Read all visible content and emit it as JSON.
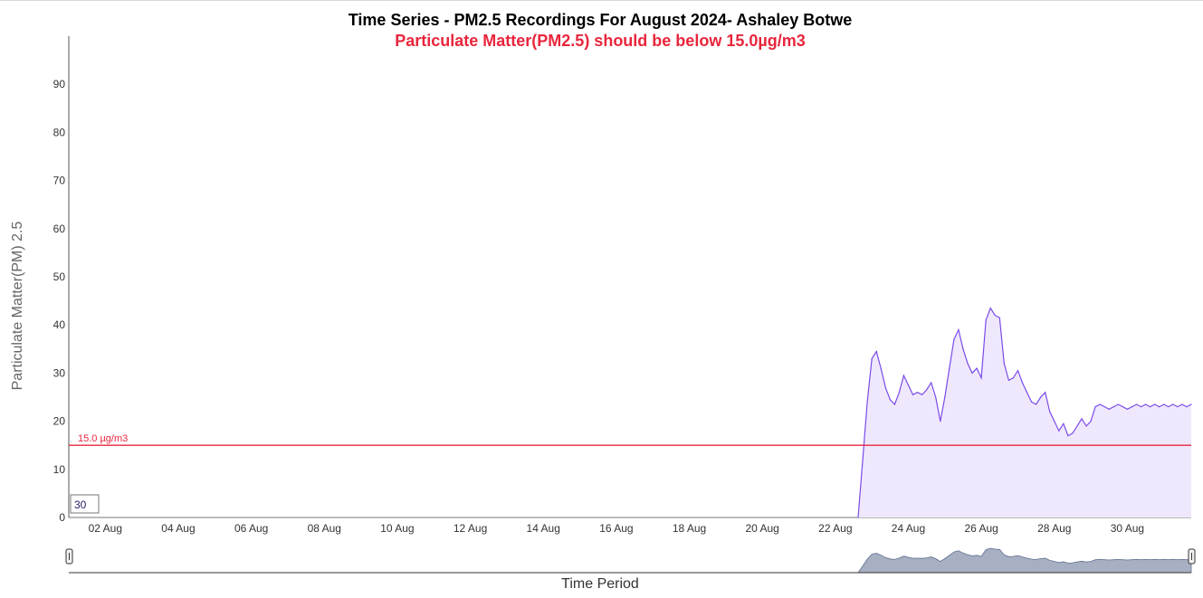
{
  "title": "Time Series - PM2.5 Recordings For August 2024- Ashaley Botwe",
  "subtitle": "Particulate Matter(PM2.5) should be below 15.0µg/m3",
  "chart_data": {
    "type": "area",
    "ylabel": "Particulate Matter(PM) 2.5",
    "xlabel": "Time Period",
    "ylim": [
      0,
      100
    ],
    "yticks": [
      0,
      10,
      20,
      30,
      40,
      50,
      60,
      70,
      80,
      90
    ],
    "xlim": [
      "2024-08-01T00:00",
      "2024-08-31T18:00"
    ],
    "xticks": [
      "02 Aug",
      "04 Aug",
      "06 Aug",
      "08 Aug",
      "10 Aug",
      "12 Aug",
      "14 Aug",
      "16 Aug",
      "18 Aug",
      "20 Aug",
      "22 Aug",
      "24 Aug",
      "26 Aug",
      "28 Aug",
      "30 Aug"
    ],
    "threshold": {
      "value": 15.0,
      "label": "15.0 µg/m3",
      "color": "#e8263c"
    },
    "moving_average_label": "30",
    "series": [
      {
        "color": "#7b4be8",
        "fill": "#efe8fd",
        "x": [
          "2024-08-22T15:00",
          "2024-08-22T18:00",
          "2024-08-22T21:00",
          "2024-08-23T00:00",
          "2024-08-23T03:00",
          "2024-08-23T06:00",
          "2024-08-23T09:00",
          "2024-08-23T12:00",
          "2024-08-23T15:00",
          "2024-08-23T18:00",
          "2024-08-23T21:00",
          "2024-08-24T00:00",
          "2024-08-24T03:00",
          "2024-08-24T06:00",
          "2024-08-24T09:00",
          "2024-08-24T12:00",
          "2024-08-24T15:00",
          "2024-08-24T18:00",
          "2024-08-24T21:00",
          "2024-08-25T00:00",
          "2024-08-25T03:00",
          "2024-08-25T06:00",
          "2024-08-25T09:00",
          "2024-08-25T12:00",
          "2024-08-25T15:00",
          "2024-08-25T18:00",
          "2024-08-25T21:00",
          "2024-08-26T00:00",
          "2024-08-26T03:00",
          "2024-08-26T06:00",
          "2024-08-26T09:00",
          "2024-08-26T12:00",
          "2024-08-26T15:00",
          "2024-08-26T18:00",
          "2024-08-26T21:00",
          "2024-08-27T00:00",
          "2024-08-27T03:00",
          "2024-08-27T06:00",
          "2024-08-27T09:00",
          "2024-08-27T12:00",
          "2024-08-27T15:00",
          "2024-08-27T18:00",
          "2024-08-27T21:00",
          "2024-08-28T00:00",
          "2024-08-28T03:00",
          "2024-08-28T06:00",
          "2024-08-28T09:00",
          "2024-08-28T12:00",
          "2024-08-28T15:00",
          "2024-08-28T18:00",
          "2024-08-28T21:00",
          "2024-08-29T00:00",
          "2024-08-29T03:00",
          "2024-08-29T06:00",
          "2024-08-29T09:00",
          "2024-08-29T12:00",
          "2024-08-29T15:00",
          "2024-08-29T18:00",
          "2024-08-29T21:00",
          "2024-08-30T00:00",
          "2024-08-30T03:00",
          "2024-08-30T06:00",
          "2024-08-30T09:00",
          "2024-08-30T12:00",
          "2024-08-30T15:00",
          "2024-08-30T18:00",
          "2024-08-30T21:00",
          "2024-08-31T00:00",
          "2024-08-31T03:00",
          "2024-08-31T06:00",
          "2024-08-31T09:00",
          "2024-08-31T12:00",
          "2024-08-31T15:00",
          "2024-08-31T18:00"
        ],
        "values": [
          0,
          12,
          24,
          33,
          34.5,
          31,
          27,
          24.5,
          23.5,
          26,
          29.5,
          27.5,
          25.5,
          26,
          25.5,
          26.5,
          28,
          25,
          20,
          25,
          31,
          37,
          39,
          35,
          32,
          30,
          31,
          29,
          41,
          43.5,
          42,
          41.5,
          32,
          28.5,
          29,
          30.5,
          28,
          26,
          24,
          23.5,
          25,
          26,
          22,
          20,
          18,
          19.5,
          17,
          17.5,
          19,
          20.5,
          19,
          20,
          23,
          23.5,
          23,
          22.5,
          23,
          23.5,
          23,
          22.5,
          23,
          23.5,
          23,
          23.5,
          23,
          23.5,
          23,
          23.5,
          23,
          23.5,
          23,
          23.5,
          23,
          23.5
        ]
      }
    ],
    "navigator": {
      "fill": "#a7afc2",
      "stroke": "#5f6f8f"
    }
  }
}
